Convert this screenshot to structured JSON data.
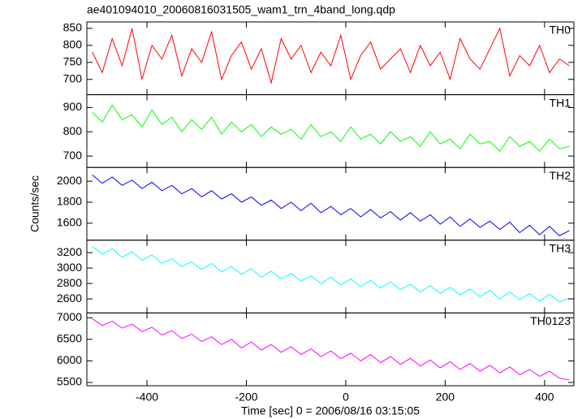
{
  "chart_data": {
    "type": "line",
    "title": "ae401094010_20060816031505_wam1_trn_4band_long.qdp",
    "x_label": "Time [sec] 0 = 2006/08/16 03:15:05",
    "y_label": "Counts/sec",
    "x": [
      -510,
      -490,
      -470,
      -450,
      -430,
      -410,
      -390,
      -370,
      -350,
      -330,
      -310,
      -290,
      -270,
      -250,
      -230,
      -210,
      -190,
      -170,
      -150,
      -130,
      -110,
      -90,
      -70,
      -50,
      -30,
      -10,
      10,
      30,
      50,
      70,
      90,
      110,
      130,
      150,
      170,
      190,
      210,
      230,
      250,
      270,
      290,
      310,
      330,
      350,
      370,
      390,
      410,
      430,
      450
    ],
    "xlim": [
      -521,
      459
    ],
    "xticks": [
      -400,
      -200,
      0,
      200,
      400
    ],
    "series": [
      {
        "name": "TH0",
        "color": "#ff0000",
        "ylim": [
          655,
          869
        ],
        "yticks": [
          700,
          750,
          800,
          850
        ],
        "values": [
          780,
          720,
          820,
          740,
          850,
          700,
          800,
          760,
          830,
          710,
          790,
          750,
          840,
          700,
          770,
          810,
          730,
          790,
          690,
          820,
          760,
          800,
          720,
          780,
          740,
          830,
          700,
          770,
          810,
          730,
          760,
          790,
          720,
          800,
          740,
          780,
          700,
          820,
          760,
          730,
          790,
          850,
          710,
          770,
          740,
          800,
          720,
          760,
          740
        ]
      },
      {
        "name": "TH1",
        "color": "#00ff00",
        "ylim": [
          653,
          953
        ],
        "yticks": [
          700,
          800,
          900
        ],
        "values": [
          880,
          840,
          910,
          850,
          870,
          820,
          890,
          830,
          860,
          800,
          850,
          810,
          860,
          790,
          840,
          800,
          830,
          780,
          820,
          790,
          810,
          770,
          830,
          780,
          800,
          760,
          820,
          770,
          790,
          750,
          800,
          760,
          780,
          740,
          800,
          750,
          770,
          730,
          790,
          750,
          760,
          720,
          780,
          740,
          760,
          720,
          770,
          730,
          740
        ]
      },
      {
        "name": "TH2",
        "color": "#0000ff",
        "ylim": [
          1438,
          2131
        ],
        "yticks": [
          1600,
          1800,
          2000
        ],
        "values": [
          2060,
          1980,
          2040,
          1960,
          2010,
          1930,
          1990,
          1910,
          1960,
          1880,
          1930,
          1850,
          1910,
          1830,
          1880,
          1800,
          1850,
          1770,
          1820,
          1740,
          1800,
          1720,
          1790,
          1700,
          1760,
          1680,
          1740,
          1660,
          1730,
          1650,
          1710,
          1630,
          1700,
          1620,
          1680,
          1590,
          1660,
          1570,
          1640,
          1560,
          1620,
          1540,
          1610,
          1510,
          1580,
          1490,
          1570,
          1480,
          1530
        ]
      },
      {
        "name": "TH3",
        "color": "#00ffff",
        "ylim": [
          2418,
          3361
        ],
        "yticks": [
          2600,
          2800,
          3000,
          3200
        ],
        "values": [
          3280,
          3180,
          3250,
          3140,
          3210,
          3100,
          3170,
          3060,
          3120,
          3020,
          3080,
          2980,
          3060,
          2950,
          3020,
          2920,
          2990,
          2880,
          2960,
          2860,
          2930,
          2830,
          2900,
          2800,
          2880,
          2780,
          2860,
          2760,
          2840,
          2740,
          2820,
          2720,
          2790,
          2690,
          2770,
          2670,
          2750,
          2650,
          2730,
          2630,
          2710,
          2600,
          2690,
          2590,
          2670,
          2570,
          2660,
          2560,
          2610
        ]
      },
      {
        "name": "TH0123",
        "color": "#ff00ff",
        "ylim": [
          5425,
          7112
        ],
        "yticks": [
          5500,
          6000,
          6500,
          7000
        ],
        "values": [
          6980,
          6820,
          6920,
          6760,
          6850,
          6680,
          6780,
          6600,
          6700,
          6520,
          6620,
          6450,
          6560,
          6380,
          6500,
          6300,
          6440,
          6250,
          6380,
          6200,
          6330,
          6150,
          6280,
          6100,
          6230,
          6050,
          6180,
          6000,
          6150,
          5960,
          6100,
          5920,
          6060,
          5880,
          6020,
          5840,
          5980,
          5800,
          5940,
          5760,
          5900,
          5720,
          5860,
          5680,
          5800,
          5640,
          5760,
          5600,
          5560
        ]
      }
    ]
  }
}
